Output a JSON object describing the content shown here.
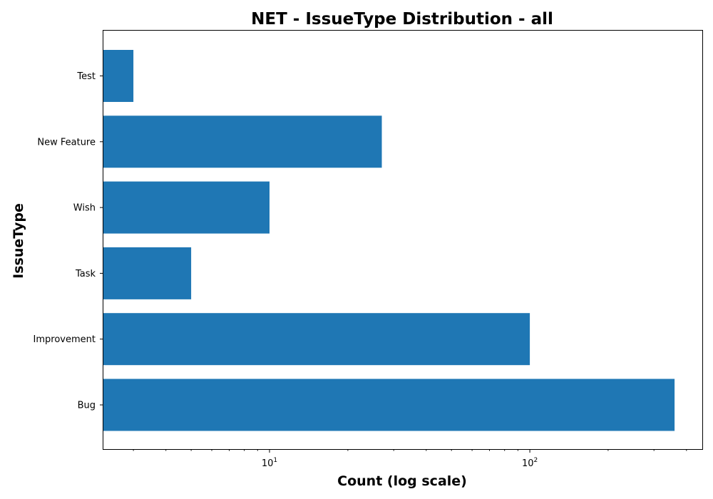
{
  "chart_data": {
    "type": "bar",
    "orientation": "horizontal",
    "title": "NET - IssueType Distribution - all",
    "xlabel": "Count (log scale)",
    "ylabel": "IssueType",
    "x_scale": "log",
    "xlim": [
      2.3,
      460
    ],
    "categories": [
      "Bug",
      "Improvement",
      "Task",
      "Wish",
      "New Feature",
      "Test"
    ],
    "values": [
      360,
      100,
      5,
      10,
      27,
      3
    ],
    "x_ticks": [
      {
        "base": "10",
        "exp": "1",
        "value": 10
      },
      {
        "base": "10",
        "exp": "2",
        "value": 100
      }
    ],
    "bar_color": "#1f77b4",
    "grid": false,
    "legend": "none"
  }
}
